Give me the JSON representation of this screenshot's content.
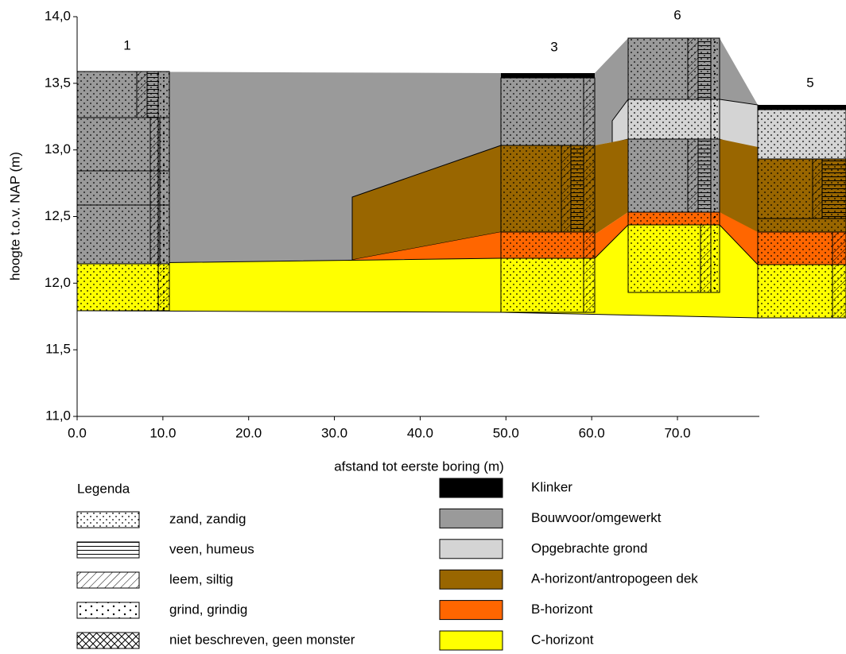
{
  "axes": {
    "y_label": "hoogte t.o.v. NAP (m)",
    "x_label": "afstand tot eerste boring (m)",
    "yticks": [
      {
        "value": 14,
        "label": "14,0"
      },
      {
        "value": 13.5,
        "label": "13,5"
      },
      {
        "value": 13,
        "label": "13,0"
      },
      {
        "value": 12.5,
        "label": "12,5"
      },
      {
        "value": 12,
        "label": "12,0"
      },
      {
        "value": 11.5,
        "label": "11,5"
      },
      {
        "value": 11,
        "label": "11,0"
      }
    ],
    "xticks": [
      {
        "value": 0,
        "label": "0.0"
      },
      {
        "value": 10,
        "label": "10.0"
      },
      {
        "value": 20,
        "label": "20.0"
      },
      {
        "value": 30,
        "label": "30.0"
      },
      {
        "value": 40,
        "label": "40.0"
      },
      {
        "value": 50,
        "label": "50.0"
      },
      {
        "value": 60,
        "label": "60.0"
      },
      {
        "value": 70,
        "label": "70.0"
      }
    ]
  },
  "borings": [
    {
      "label": "1"
    },
    {
      "label": "3"
    },
    {
      "label": "6"
    },
    {
      "label": "5"
    }
  ],
  "legend": {
    "title": "Legenda",
    "patterns": [
      {
        "label": "zand, zandig"
      },
      {
        "label": "veen, humeus"
      },
      {
        "label": "leem, siltig"
      },
      {
        "label": "grind, grindig"
      },
      {
        "label": "niet beschreven, geen monster"
      }
    ],
    "units": [
      {
        "label": "Klinker",
        "color": "#000000"
      },
      {
        "label": "Bouwvoor/omgewerkt",
        "color": "#9a9a9a"
      },
      {
        "label": "Opgebrachte grond",
        "color": "#d4d4d4"
      },
      {
        "label": "A-horizont/antropogeen dek",
        "color": "#996600"
      },
      {
        "label": "B-horizont",
        "color": "#ff6600"
      },
      {
        "label": "C-horizont",
        "color": "#ffff00"
      }
    ]
  }
}
